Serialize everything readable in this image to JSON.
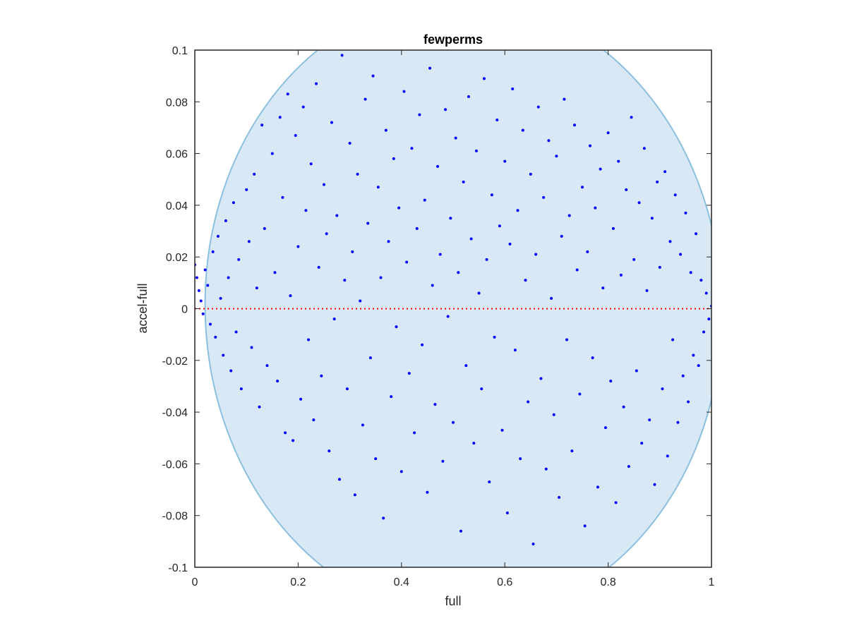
{
  "chart_data": {
    "type": "scatter",
    "title": "fewperms",
    "xlabel": "full",
    "ylabel": "accel-full",
    "xlim": [
      0,
      1
    ],
    "ylim": [
      -0.1,
      0.1
    ],
    "x_ticks": [
      0,
      0.2,
      0.4,
      0.6,
      0.8,
      1
    ],
    "x_tick_labels": [
      "0",
      "0.2",
      "0.4",
      "0.6",
      "0.8",
      "1"
    ],
    "y_ticks": [
      -0.1,
      -0.08,
      -0.06,
      -0.04,
      -0.02,
      0,
      0.02,
      0.04,
      0.06,
      0.08,
      0.1
    ],
    "y_tick_labels": [
      "-0.1",
      "-0.08",
      "-0.06",
      "-0.04",
      "-0.02",
      "0",
      "0.02",
      "0.04",
      "0.06",
      "0.08",
      "0.1"
    ],
    "grid": false,
    "legend": "none",
    "reference_line": {
      "y": 0,
      "style": "dotted",
      "color": "#ff0000"
    },
    "region": {
      "shape": "ellipse",
      "description_values": {
        "center_x": 0.52,
        "center_y": 0.0,
        "semi_axis_x": 0.5,
        "semi_axis_y": 0.12,
        "rotation_deg": -2
      },
      "fill_color": "#d8e8f4",
      "edge_color": "#8cc0df"
    },
    "marker_color": "#0000ff",
    "series": [
      {
        "points": [
          [
            0.0,
            0.017
          ],
          [
            0.004,
            0.012
          ],
          [
            0.008,
            0.007
          ],
          [
            0.012,
            0.003
          ],
          [
            0.016,
            -0.002
          ],
          [
            0.02,
            0.015
          ],
          [
            0.025,
            0.009
          ],
          [
            0.03,
            -0.006
          ],
          [
            0.035,
            0.022
          ],
          [
            0.04,
            -0.011
          ],
          [
            0.045,
            0.028
          ],
          [
            0.05,
            0.004
          ],
          [
            0.055,
            -0.018
          ],
          [
            0.06,
            0.034
          ],
          [
            0.065,
            0.012
          ],
          [
            0.07,
            -0.024
          ],
          [
            0.075,
            0.041
          ],
          [
            0.08,
            -0.009
          ],
          [
            0.085,
            0.019
          ],
          [
            0.09,
            -0.031
          ],
          [
            0.1,
            0.046
          ],
          [
            0.105,
            0.026
          ],
          [
            0.11,
            -0.015
          ],
          [
            0.115,
            0.052
          ],
          [
            0.12,
            0.008
          ],
          [
            0.125,
            -0.038
          ],
          [
            0.13,
            0.071
          ],
          [
            0.135,
            0.031
          ],
          [
            0.14,
            -0.022
          ],
          [
            0.15,
            0.06
          ],
          [
            0.155,
            0.014
          ],
          [
            0.16,
            -0.028
          ],
          [
            0.165,
            0.074
          ],
          [
            0.17,
            0.043
          ],
          [
            0.175,
            -0.048
          ],
          [
            0.18,
            0.083
          ],
          [
            0.185,
            0.005
          ],
          [
            0.19,
            -0.051
          ],
          [
            0.195,
            0.067
          ],
          [
            0.2,
            0.024
          ],
          [
            0.205,
            -0.035
          ],
          [
            0.21,
            0.078
          ],
          [
            0.215,
            0.038
          ],
          [
            0.22,
            -0.012
          ],
          [
            0.225,
            0.056
          ],
          [
            0.23,
            -0.043
          ],
          [
            0.235,
            0.087
          ],
          [
            0.24,
            0.016
          ],
          [
            0.245,
            -0.026
          ],
          [
            0.25,
            0.048
          ],
          [
            0.255,
            0.029
          ],
          [
            0.26,
            -0.055
          ],
          [
            0.265,
            0.072
          ],
          [
            0.27,
            -0.004
          ],
          [
            0.275,
            0.036
          ],
          [
            0.28,
            -0.066
          ],
          [
            0.285,
            0.098
          ],
          [
            0.29,
            0.011
          ],
          [
            0.295,
            -0.031
          ],
          [
            0.3,
            0.064
          ],
          [
            0.305,
            0.022
          ],
          [
            0.31,
            -0.072
          ],
          [
            0.315,
            0.052
          ],
          [
            0.32,
            0.003
          ],
          [
            0.325,
            -0.045
          ],
          [
            0.33,
            0.081
          ],
          [
            0.335,
            0.033
          ],
          [
            0.34,
            -0.019
          ],
          [
            0.345,
            0.09
          ],
          [
            0.35,
            -0.058
          ],
          [
            0.355,
            0.047
          ],
          [
            0.36,
            0.012
          ],
          [
            0.365,
            -0.081
          ],
          [
            0.37,
            0.069
          ],
          [
            0.375,
            0.026
          ],
          [
            0.38,
            -0.034
          ],
          [
            0.385,
            0.058
          ],
          [
            0.39,
            -0.007
          ],
          [
            0.395,
            0.039
          ],
          [
            0.4,
            -0.063
          ],
          [
            0.405,
            0.084
          ],
          [
            0.41,
            0.018
          ],
          [
            0.415,
            -0.025
          ],
          [
            0.42,
            0.062
          ],
          [
            0.425,
            -0.048
          ],
          [
            0.43,
            0.031
          ],
          [
            0.435,
            0.075
          ],
          [
            0.44,
            -0.014
          ],
          [
            0.445,
            0.042
          ],
          [
            0.45,
            -0.071
          ],
          [
            0.455,
            0.093
          ],
          [
            0.46,
            0.009
          ],
          [
            0.465,
            -0.037
          ],
          [
            0.47,
            0.055
          ],
          [
            0.475,
            0.021
          ],
          [
            0.48,
            -0.059
          ],
          [
            0.485,
            0.077
          ],
          [
            0.49,
            -0.003
          ],
          [
            0.495,
            0.035
          ],
          [
            0.5,
            -0.044
          ],
          [
            0.505,
            0.066
          ],
          [
            0.51,
            0.014
          ],
          [
            0.515,
            -0.086
          ],
          [
            0.52,
            0.049
          ],
          [
            0.525,
            -0.022
          ],
          [
            0.53,
            0.082
          ],
          [
            0.535,
            0.027
          ],
          [
            0.54,
            -0.052
          ],
          [
            0.545,
            0.061
          ],
          [
            0.55,
            0.006
          ],
          [
            0.555,
            -0.031
          ],
          [
            0.56,
            0.089
          ],
          [
            0.565,
            0.019
          ],
          [
            0.57,
            -0.067
          ],
          [
            0.575,
            0.044
          ],
          [
            0.58,
            -0.011
          ],
          [
            0.585,
            0.073
          ],
          [
            0.59,
            0.032
          ],
          [
            0.595,
            -0.047
          ],
          [
            0.6,
            0.057
          ],
          [
            0.605,
            -0.079
          ],
          [
            0.61,
            0.025
          ],
          [
            0.615,
            0.085
          ],
          [
            0.62,
            -0.016
          ],
          [
            0.625,
            0.038
          ],
          [
            0.63,
            -0.058
          ],
          [
            0.635,
            0.069
          ],
          [
            0.64,
            0.011
          ],
          [
            0.645,
            -0.036
          ],
          [
            0.65,
            0.052
          ],
          [
            0.655,
            -0.091
          ],
          [
            0.66,
            0.021
          ],
          [
            0.665,
            0.078
          ],
          [
            0.67,
            -0.027
          ],
          [
            0.675,
            0.043
          ],
          [
            0.68,
            -0.062
          ],
          [
            0.685,
            0.065
          ],
          [
            0.69,
            0.004
          ],
          [
            0.695,
            -0.041
          ],
          [
            0.7,
            0.059
          ],
          [
            0.705,
            -0.073
          ],
          [
            0.71,
            0.028
          ],
          [
            0.715,
            0.081
          ],
          [
            0.72,
            -0.012
          ],
          [
            0.725,
            0.036
          ],
          [
            0.73,
            -0.055
          ],
          [
            0.735,
            0.071
          ],
          [
            0.74,
            0.015
          ],
          [
            0.745,
            -0.033
          ],
          [
            0.75,
            0.047
          ],
          [
            0.755,
            -0.084
          ],
          [
            0.76,
            0.022
          ],
          [
            0.765,
            0.063
          ],
          [
            0.77,
            -0.019
          ],
          [
            0.775,
            0.039
          ],
          [
            0.78,
            -0.069
          ],
          [
            0.785,
            0.054
          ],
          [
            0.79,
            0.008
          ],
          [
            0.795,
            -0.046
          ],
          [
            0.8,
            0.068
          ],
          [
            0.805,
            -0.028
          ],
          [
            0.81,
            0.031
          ],
          [
            0.815,
            -0.075
          ],
          [
            0.82,
            0.057
          ],
          [
            0.825,
            0.013
          ],
          [
            0.83,
            -0.038
          ],
          [
            0.835,
            0.046
          ],
          [
            0.84,
            -0.061
          ],
          [
            0.845,
            0.074
          ],
          [
            0.85,
            0.019
          ],
          [
            0.855,
            -0.024
          ],
          [
            0.86,
            0.041
          ],
          [
            0.865,
            -0.052
          ],
          [
            0.87,
            0.062
          ],
          [
            0.875,
            0.007
          ],
          [
            0.88,
            -0.043
          ],
          [
            0.885,
            0.035
          ],
          [
            0.89,
            -0.068
          ],
          [
            0.895,
            0.049
          ],
          [
            0.9,
            0.016
          ],
          [
            0.905,
            -0.031
          ],
          [
            0.91,
            0.053
          ],
          [
            0.915,
            -0.057
          ],
          [
            0.92,
            0.026
          ],
          [
            0.925,
            -0.012
          ],
          [
            0.93,
            0.044
          ],
          [
            0.935,
            -0.044
          ],
          [
            0.94,
            0.021
          ],
          [
            0.945,
            -0.026
          ],
          [
            0.95,
            0.037
          ],
          [
            0.955,
            -0.036
          ],
          [
            0.96,
            0.014
          ],
          [
            0.965,
            -0.018
          ],
          [
            0.97,
            0.029
          ],
          [
            0.975,
            -0.022
          ],
          [
            0.98,
            0.011
          ],
          [
            0.985,
            -0.009
          ],
          [
            0.99,
            0.006
          ],
          [
            0.995,
            -0.004
          ],
          [
            1.0,
            0.001
          ]
        ]
      }
    ]
  }
}
